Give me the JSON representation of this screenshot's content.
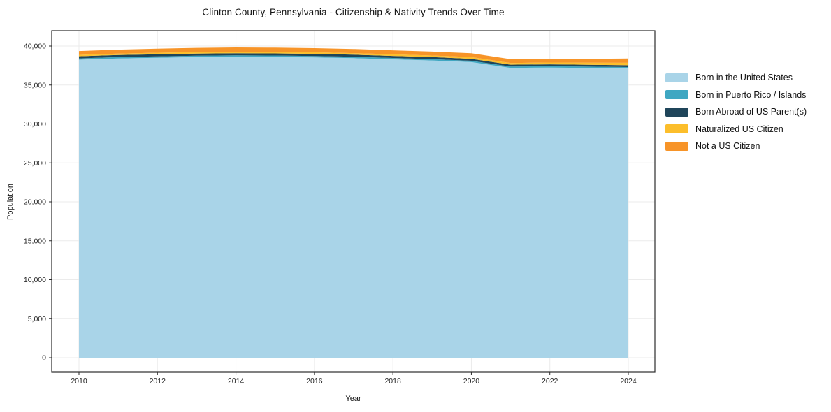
{
  "chart_data": {
    "type": "area",
    "stacked": true,
    "title": "Clinton County, Pennsylvania - Citizenship & Nativity Trends Over Time",
    "xlabel": "Year",
    "ylabel": "Population",
    "grid": true,
    "legend_position": "right",
    "ylim": [
      0,
      42000
    ],
    "yticks": [
      0,
      5000,
      10000,
      15000,
      20000,
      25000,
      30000,
      35000,
      40000
    ],
    "xticks": [
      2010,
      2012,
      2014,
      2016,
      2018,
      2020,
      2022,
      2024
    ],
    "x": [
      2010,
      2011,
      2012,
      2013,
      2014,
      2015,
      2016,
      2017,
      2018,
      2019,
      2020,
      2021,
      2022,
      2023,
      2024
    ],
    "series": [
      {
        "name": "Born in the United States",
        "color": "#a9d4e8",
        "values": [
          38250,
          38400,
          38500,
          38580,
          38620,
          38600,
          38550,
          38450,
          38300,
          38150,
          37950,
          37200,
          37250,
          37200,
          37150
        ]
      },
      {
        "name": "Born in Puerto Rico / Islands",
        "color": "#3fa7c2",
        "values": [
          175,
          180,
          180,
          185,
          185,
          185,
          180,
          180,
          175,
          175,
          170,
          170,
          165,
          165,
          160
        ]
      },
      {
        "name": "Born Abroad of US Parent(s)",
        "color": "#1f455a",
        "values": [
          270,
          270,
          275,
          275,
          275,
          270,
          270,
          265,
          260,
          255,
          250,
          240,
          240,
          235,
          230
        ]
      },
      {
        "name": "Naturalized US Citizen",
        "color": "#fcbe2b",
        "values": [
          185,
          190,
          195,
          195,
          200,
          200,
          200,
          200,
          205,
          205,
          210,
          220,
          240,
          270,
          320
        ]
      },
      {
        "name": "Not a US Citizen",
        "color": "#f79428",
        "values": [
          480,
          500,
          515,
          530,
          540,
          540,
          535,
          525,
          515,
          505,
          495,
          480,
          480,
          495,
          540
        ]
      }
    ],
    "colors": {
      "grid": "#ebebeb",
      "axis_border": "#2b2b2b",
      "tick": "#2b2b2b",
      "tick_label": "#1f1f1f"
    }
  }
}
